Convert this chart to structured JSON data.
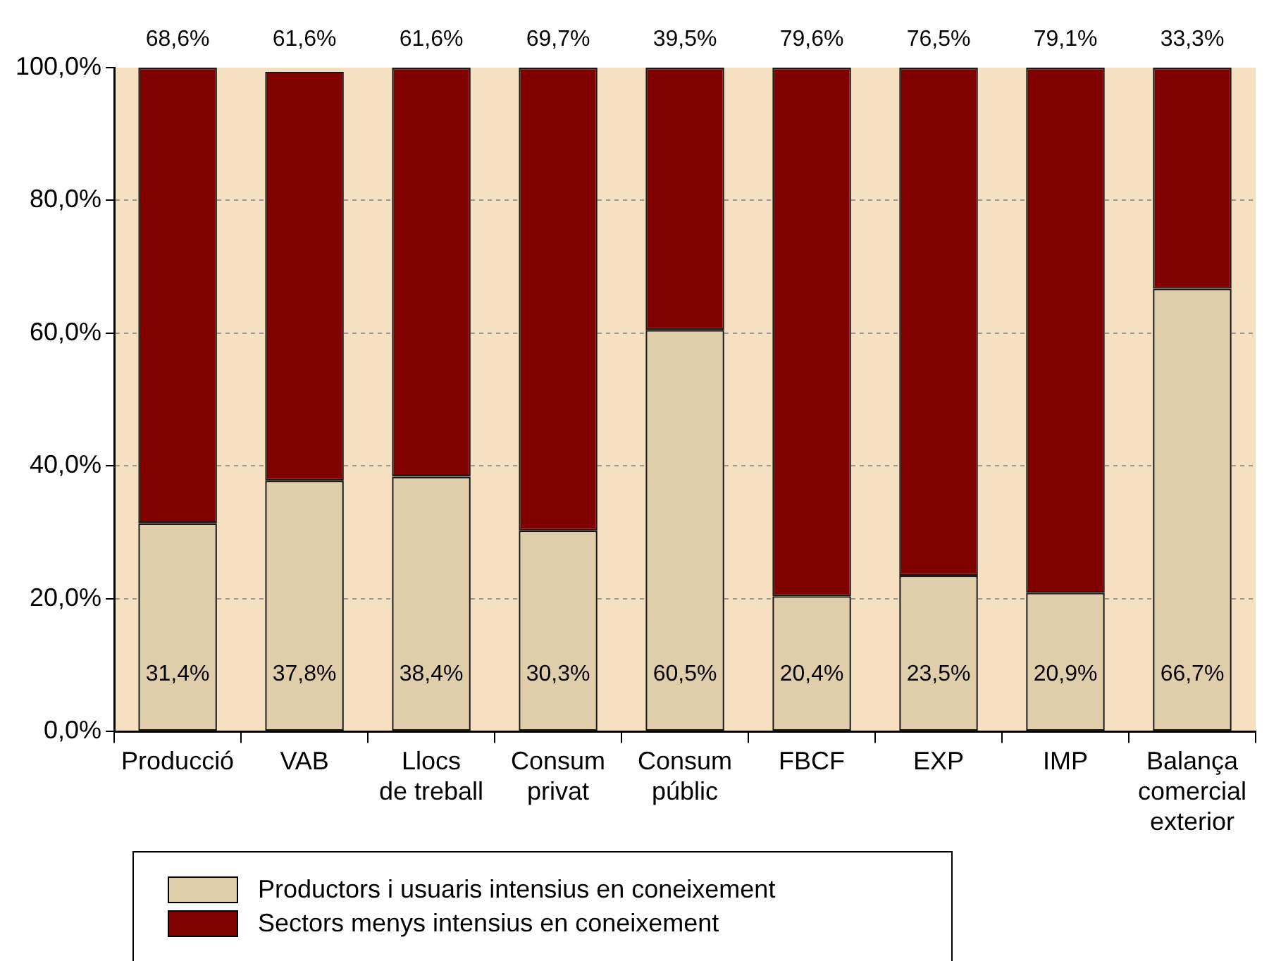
{
  "chart_data": {
    "type": "bar",
    "stacked": true,
    "categories": [
      "Producció",
      "VAB",
      "Llocs\nde treball",
      "Consum\nprivat",
      "Consum\npúblic",
      "FBCF",
      "EXP",
      "IMP",
      "Balança\ncomercial\nexterior"
    ],
    "series": [
      {
        "name": "Productors i usuaris intensius en coneixement",
        "color": "#e0cda9",
        "values": [
          31.4,
          37.8,
          38.4,
          30.3,
          60.5,
          20.4,
          23.5,
          20.9,
          66.7
        ],
        "value_labels": [
          "31,4%",
          "37,8%",
          "38,4%",
          "30,3%",
          "60,5%",
          "20,4%",
          "23,5%",
          "20,9%",
          "66,7%"
        ]
      },
      {
        "name": "Sectors menys intensius en coneixement",
        "color": "#800000",
        "values": [
          68.6,
          61.6,
          61.6,
          69.7,
          39.5,
          79.6,
          76.5,
          79.1,
          33.3
        ],
        "value_labels": [
          "68,6%",
          "61,6%",
          "61,6%",
          "69,7%",
          "39,5%",
          "79,6%",
          "76,5%",
          "79,1%",
          "33,3%"
        ]
      }
    ],
    "ylim": [
      0,
      100
    ],
    "yticks": [
      {
        "value": 0,
        "label": "0,0%"
      },
      {
        "value": 20,
        "label": "20,0%"
      },
      {
        "value": 40,
        "label": "40,0%"
      },
      {
        "value": 60,
        "label": "60,0%"
      },
      {
        "value": 80,
        "label": "80,0%"
      },
      {
        "value": 100,
        "label": "100,0%"
      }
    ],
    "grid": "y",
    "legend": "bottom"
  }
}
